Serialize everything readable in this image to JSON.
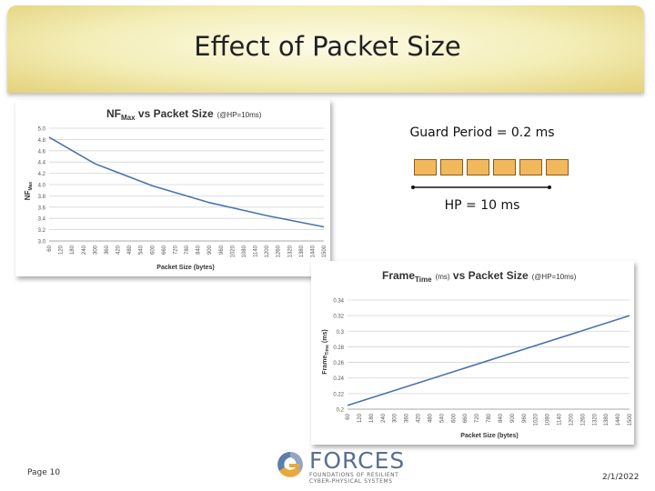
{
  "slide": {
    "title": "Effect of Packet Size",
    "page_label": "Page 10",
    "date": "2/1/2022"
  },
  "diagram": {
    "guard_label": "Guard Period = 0.2 ms",
    "hp_label": "HP = 10 ms",
    "block_count": 6,
    "block_color": "#f2b85c"
  },
  "logo": {
    "name": "FORCES",
    "line1": "FOUNDATIONS OF RESILIENT",
    "line2": "CYBER-PHYSICAL SYSTEMS"
  },
  "chart_data": [
    {
      "type": "line",
      "title_main": "NF",
      "title_sub": "Max",
      "title_rest": " vs Packet Size",
      "title_note": "(@HP=10ms)",
      "ylabel": "NF",
      "ylabel_sub": "Max",
      "xlabel": "Packet Size (bytes)",
      "ylim": [
        3.0,
        5.0
      ],
      "yticks": [
        "5.0",
        "4.8",
        "4.6",
        "4.4",
        "4.2",
        "4.0",
        "3.8",
        "3.6",
        "3.4",
        "3.2",
        "3.0"
      ],
      "xticks": [
        "60",
        "120",
        "180",
        "240",
        "300",
        "360",
        "420",
        "480",
        "540",
        "600",
        "660",
        "720",
        "780",
        "840",
        "900",
        "960",
        "1020",
        "1080",
        "1140",
        "1200",
        "1260",
        "1320",
        "1380",
        "1440",
        "1500"
      ],
      "series": [
        {
          "name": "NFMax",
          "color": "#4a72ad",
          "x": [
            60,
            300,
            600,
            900,
            1200,
            1500
          ],
          "values": [
            4.84,
            4.37,
            3.98,
            3.68,
            3.45,
            3.25
          ]
        }
      ]
    },
    {
      "type": "line",
      "title_main": "Frame",
      "title_sub": "Time",
      "title_rest": " vs Packet Size",
      "title_unit": "(ms)",
      "title_note": "(@HP=10ms)",
      "ylabel": "Frame",
      "ylabel_sub": "Time",
      "ylabel_unit": "(ms)",
      "xlabel": "Packet Size (bytes)",
      "ylim": [
        0.2,
        0.34
      ],
      "yticks": [
        "0.34",
        "0.32",
        "0.3",
        "0.28",
        "0.26",
        "0.24",
        "0.22",
        "0.2"
      ],
      "xticks": [
        "60",
        "120",
        "180",
        "240",
        "300",
        "360",
        "420",
        "480",
        "540",
        "600",
        "660",
        "720",
        "780",
        "840",
        "900",
        "960",
        "1020",
        "1080",
        "1140",
        "1200",
        "1260",
        "1320",
        "1380",
        "1440",
        "1500"
      ],
      "series": [
        {
          "name": "FrameTime",
          "color": "#4a72ad",
          "x": [
            60,
            1500
          ],
          "values": [
            0.2048,
            0.32
          ]
        }
      ]
    }
  ]
}
